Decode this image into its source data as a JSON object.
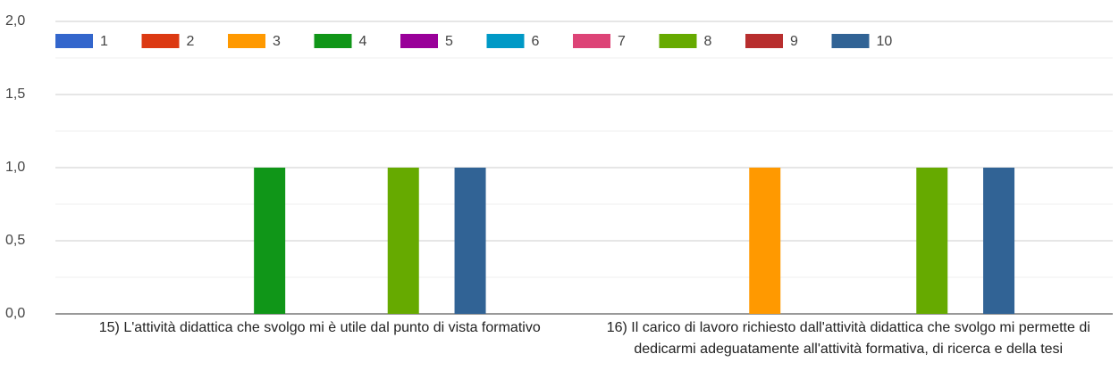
{
  "chart_data": {
    "type": "bar",
    "categories": [
      "15) L'attività didattica che svolgo mi è utile dal punto di vista formativo",
      "16) Il carico di lavoro richiesto dall'attività didattica che svolgo mi permette di dedicarmi adeguatamente all'attività formativa, di ricerca e della tesi"
    ],
    "series": [
      {
        "name": "1",
        "color": "#3366cc",
        "values": [
          0,
          0
        ]
      },
      {
        "name": "2",
        "color": "#dc3912",
        "values": [
          0,
          0
        ]
      },
      {
        "name": "3",
        "color": "#ff9900",
        "values": [
          0,
          1
        ]
      },
      {
        "name": "4",
        "color": "#109618",
        "values": [
          1,
          0
        ]
      },
      {
        "name": "5",
        "color": "#990099",
        "values": [
          0,
          0
        ]
      },
      {
        "name": "6",
        "color": "#0099c6",
        "values": [
          0,
          0
        ]
      },
      {
        "name": "7",
        "color": "#dd4477",
        "values": [
          0,
          0
        ]
      },
      {
        "name": "8",
        "color": "#66aa00",
        "values": [
          1,
          1
        ]
      },
      {
        "name": "9",
        "color": "#b82e2e",
        "values": [
          0,
          0
        ]
      },
      {
        "name": "10",
        "color": "#316395",
        "values": [
          1,
          1
        ]
      }
    ],
    "ylim": [
      0,
      2
    ],
    "yticks": [
      {
        "value": 0,
        "label": "0,0"
      },
      {
        "value": 0.5,
        "label": "0,5"
      },
      {
        "value": 1,
        "label": "1,0"
      },
      {
        "value": 1.5,
        "label": "1,5"
      },
      {
        "value": 2,
        "label": "2,0"
      }
    ],
    "yminor": [
      0.25,
      0.75,
      1.25,
      1.75
    ],
    "grid": true,
    "legend": "top"
  }
}
